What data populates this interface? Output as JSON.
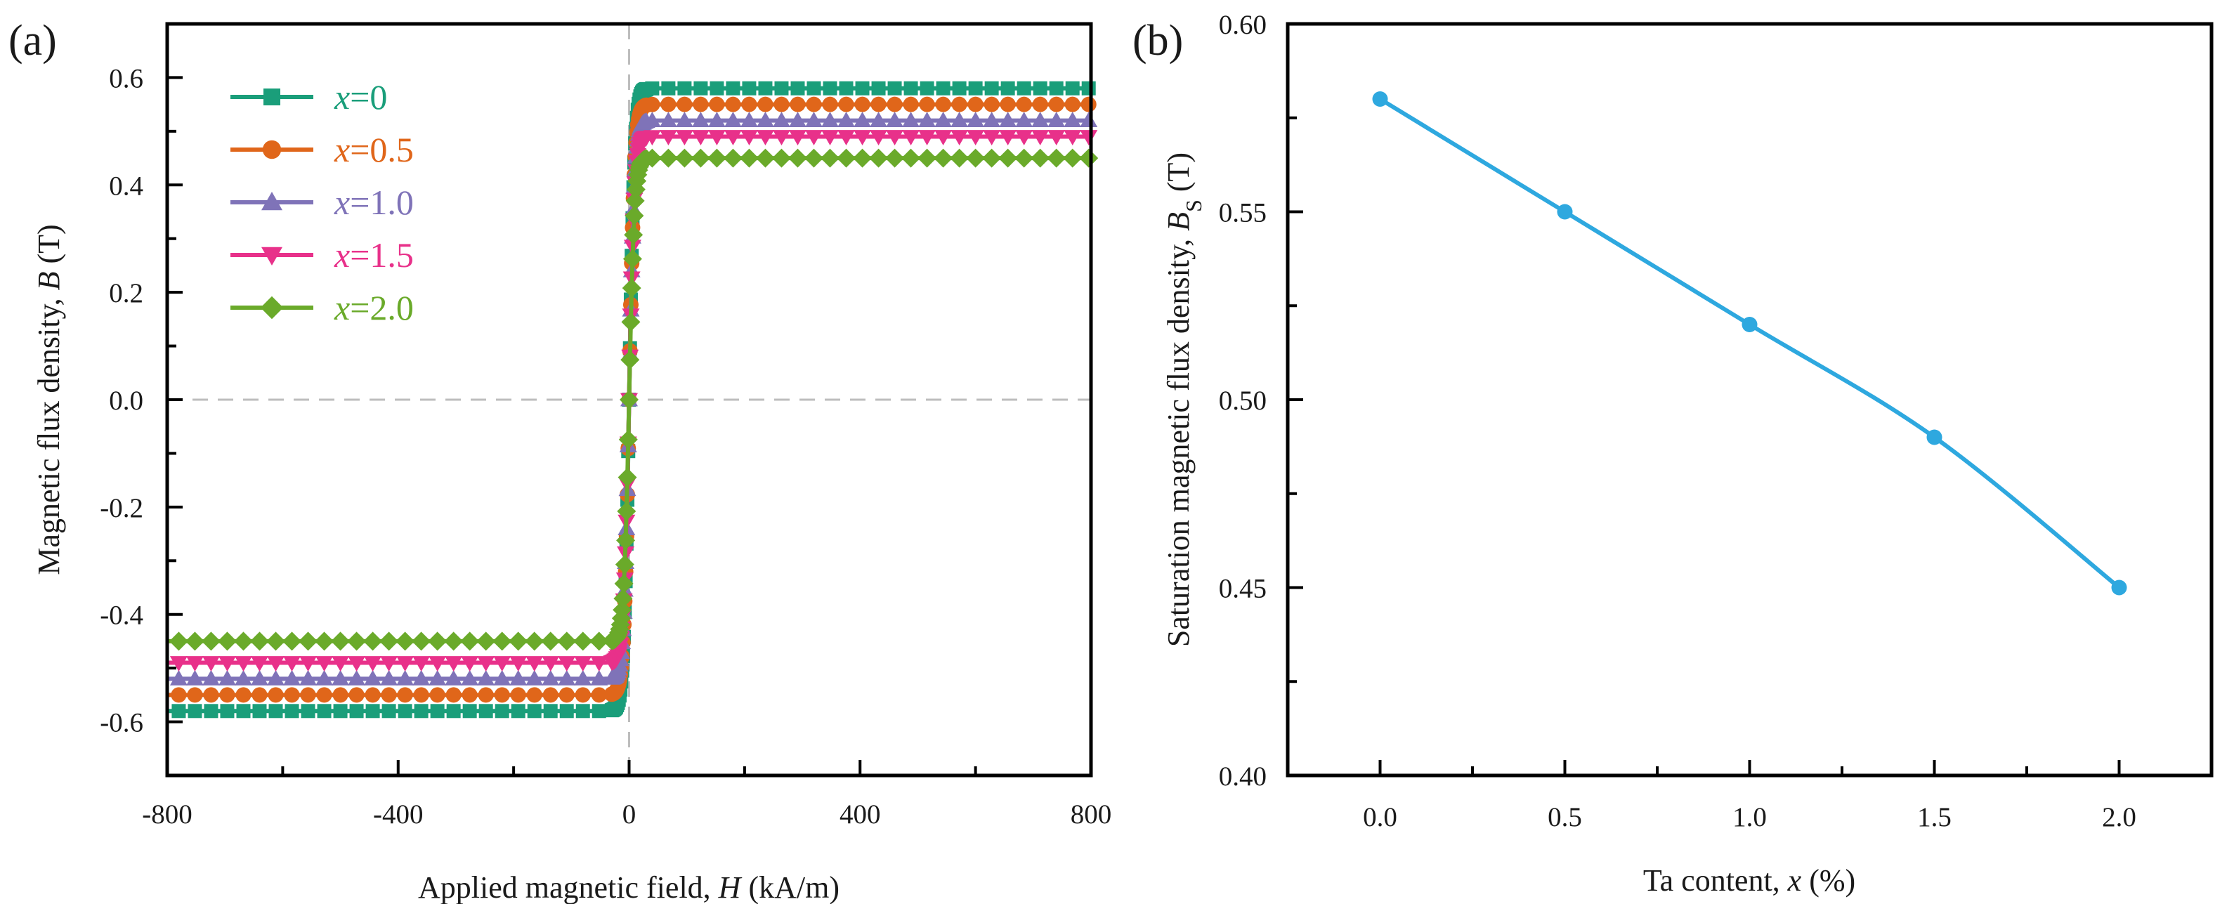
{
  "chart_data": [
    {
      "type": "line",
      "panel": "(a)",
      "xlabel_prefix": "Applied magnetic field, ",
      "xlabel_var": "H",
      "xlabel_suffix": " (kA/m)",
      "ylabel_prefix": "Magnetic flux density, ",
      "ylabel_var": "B",
      "ylabel_suffix": " (T)",
      "xlim": [
        -800,
        800
      ],
      "ylim": [
        -0.7,
        0.7
      ],
      "xticks": [
        -800,
        -400,
        0,
        400,
        800
      ],
      "xtick_labels": [
        "-800",
        "-400",
        "0",
        "400",
        "800"
      ],
      "yticks": [
        -0.6,
        -0.4,
        -0.2,
        0.0,
        0.2,
        0.4,
        0.6
      ],
      "ytick_labels": [
        "-0.6",
        "-0.4",
        "-0.2",
        "0.0",
        "0.2",
        "0.4",
        "0.6"
      ],
      "reference_lines": {
        "x": 0,
        "y": 0,
        "style": "dashed"
      },
      "legend_position": "top-left",
      "series": [
        {
          "name_var": "x",
          "name_value": "=0",
          "color": "#1a9e7a",
          "marker": "square",
          "Bs": 0.58
        },
        {
          "name_var": "x",
          "name_value": "=0.5",
          "color": "#e0661a",
          "marker": "circle",
          "Bs": 0.55
        },
        {
          "name_var": "x",
          "name_value": "=1.0",
          "color": "#7f73b8",
          "marker": "triangle-up",
          "Bs": 0.52
        },
        {
          "name_var": "x",
          "name_value": "=1.5",
          "color": "#e8318a",
          "marker": "triangle-down",
          "Bs": 0.49
        },
        {
          "name_var": "x",
          "name_value": "=2.0",
          "color": "#6aaa2a",
          "marker": "diamond",
          "Bs": 0.45
        }
      ]
    },
    {
      "type": "line",
      "panel": "(b)",
      "xlabel_prefix": "Ta content, ",
      "xlabel_var": "x",
      "xlabel_suffix": " (%)",
      "ylabel_prefix": "Saturation magnetic flux density, ",
      "ylabel_var": "B",
      "ylabel_sub": "S",
      "ylabel_suffix": " (T)",
      "xlim": [
        -0.25,
        2.25
      ],
      "ylim": [
        0.4,
        0.6
      ],
      "xticks": [
        0.0,
        0.5,
        1.0,
        1.5,
        2.0
      ],
      "xtick_labels": [
        "0.0",
        "0.5",
        "1.0",
        "1.5",
        "2.0"
      ],
      "yticks": [
        0.4,
        0.45,
        0.5,
        0.55,
        0.6
      ],
      "ytick_labels": [
        "0.40",
        "0.45",
        "0.50",
        "0.55",
        "0.60"
      ],
      "color": "#2ea8df",
      "x": [
        0.0,
        0.5,
        1.0,
        1.5,
        2.0
      ],
      "y": [
        0.58,
        0.55,
        0.52,
        0.49,
        0.45
      ]
    }
  ]
}
